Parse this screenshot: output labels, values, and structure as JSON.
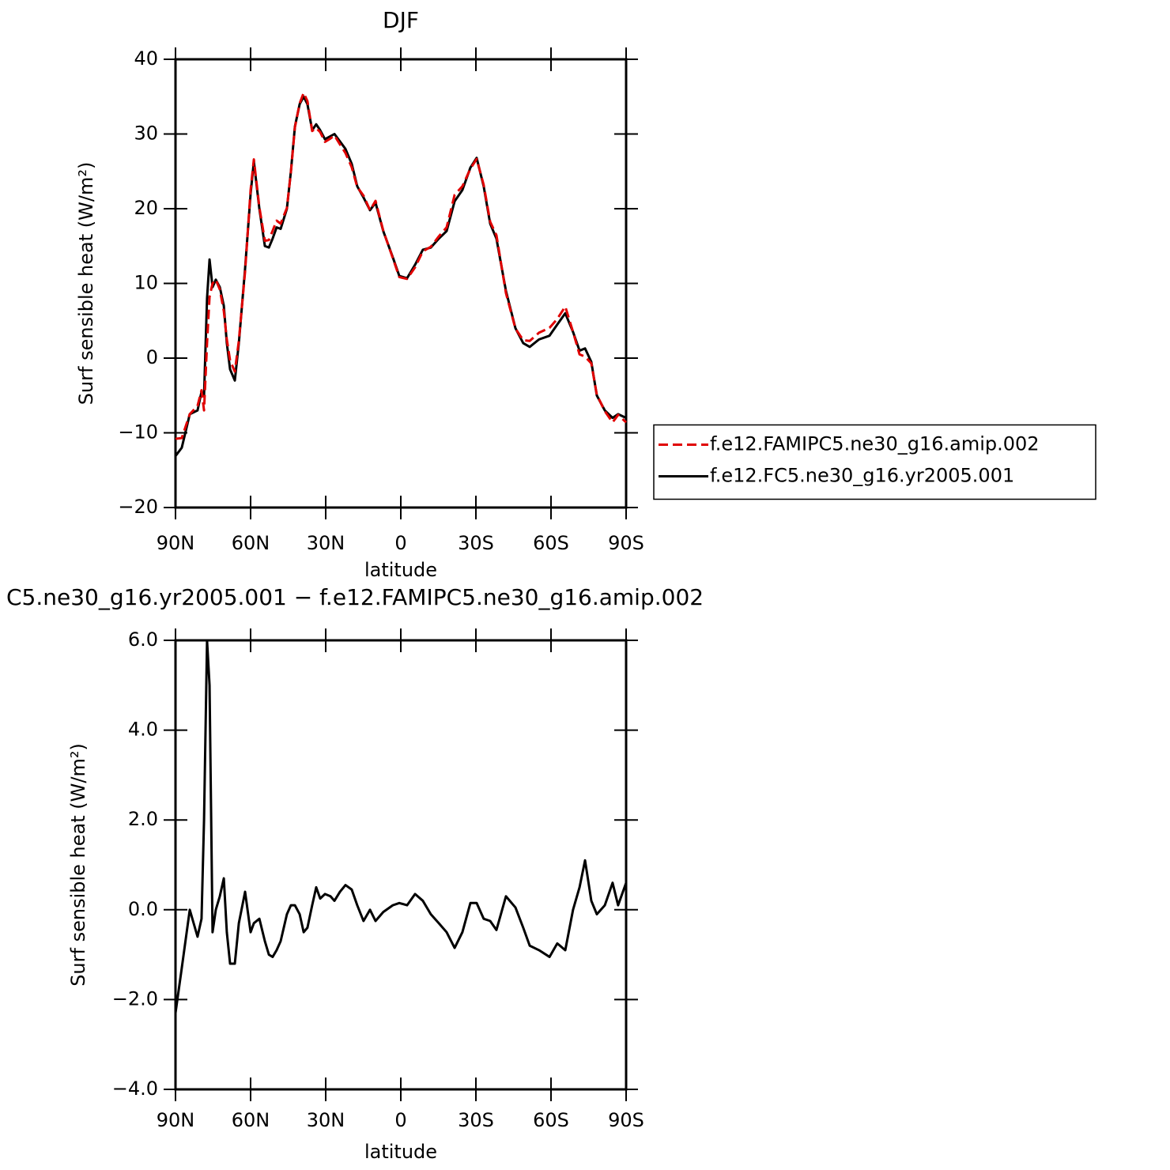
{
  "chart_data": [
    {
      "type": "line",
      "title": "DJF",
      "x_label": "latitude",
      "y_label": "Surf sensible heat (W/m²)",
      "xlim": [
        90,
        -90
      ],
      "xticks": [
        {
          "value": 90,
          "label": "90N"
        },
        {
          "value": 60,
          "label": "60N"
        },
        {
          "value": 30,
          "label": "30N"
        },
        0,
        {
          "value": -30,
          "label": "30S"
        },
        {
          "value": -60,
          "label": "60S"
        },
        {
          "value": -90,
          "label": "90S"
        }
      ],
      "ylim": [
        -20,
        40
      ],
      "yticks": [
        {
          "value": -20,
          "label": "−20"
        },
        {
          "value": -10,
          "label": "−10"
        },
        0,
        10,
        20,
        30,
        40
      ],
      "legend": "right",
      "x": [
        90,
        87.5,
        84.3,
        81.2,
        79.6,
        78.6,
        77.4,
        76.4,
        75.2,
        73.9,
        72.3,
        70.7,
        69.5,
        68.2,
        66.3,
        64.7,
        62.2,
        60,
        58.7,
        56.5,
        54.3,
        52.7,
        51.2,
        49.6,
        48,
        45.5,
        43.9,
        42.3,
        40.4,
        38.8,
        37.3,
        35.4,
        33.8,
        32.2,
        30.3,
        28.1,
        26.5,
        24.3,
        22.1,
        19.6,
        17.4,
        14.9,
        12.3,
        10.1,
        7,
        3.2,
        0.6,
        -2.5,
        -5.7,
        -8.8,
        -12,
        -15.2,
        -18.3,
        -21.5,
        -24.6,
        -27.8,
        -30.3,
        -33.1,
        -35.7,
        -38.2,
        -42,
        -45.8,
        -48.9,
        -51.5,
        -55.2,
        -59.4,
        -62.5,
        -65.7,
        -68.8,
        -71.4,
        -73.6,
        -76.1,
        -78.3,
        -81.5,
        -84.6,
        -86.8,
        -90
      ],
      "series": [
        {
          "name": "f.e12.FAMIPC5.ne30_g16.amip.002",
          "color": "#e00000",
          "linestyle": "dashed",
          "values": [
            -10.8,
            -10.7,
            -7.5,
            -6.4,
            -4.3,
            -7,
            2,
            8.2,
            10,
            10.5,
            9.2,
            6.3,
            2.5,
            -0.3,
            -1.8,
            2.3,
            11.6,
            22.5,
            26.6,
            20.2,
            15.7,
            15.8,
            17.05,
            18.4,
            18,
            20.1,
            24.9,
            30.9,
            34.1,
            35.5,
            34.4,
            30.4,
            30.8,
            30.25,
            28.95,
            29.4,
            29.8,
            28.6,
            27.45,
            25.55,
            22.9,
            21.75,
            19.8,
            21.05,
            17.05,
            13.4,
            10.85,
            10.6,
            12.15,
            14.3,
            14.9,
            16.3,
            17.5,
            21.85,
            23,
            25.35,
            26.65,
            23.2,
            18.25,
            16.45,
            8.7,
            3.95,
            2.4,
            2.3,
            3.4,
            4.05,
            5.25,
            6.9,
            3.5,
            0.5,
            0.2,
            -0.7,
            -4.9,
            -7.1,
            -8.6,
            -7.6,
            -8.6
          ]
        },
        {
          "name": "f.e12.FC5.ne30_g16.yr2005.001",
          "color": "#000000",
          "linestyle": "solid",
          "values": [
            -13.1,
            -12,
            -7.5,
            -7,
            -4.5,
            -5,
            8,
            13.2,
            9.5,
            10.5,
            9.5,
            7,
            2,
            -1.5,
            -3,
            2,
            12,
            22,
            26.3,
            20,
            15,
            14.8,
            16,
            17.5,
            17.3,
            20,
            25,
            31,
            34,
            35,
            34,
            30.5,
            31.3,
            30.5,
            29.3,
            29.7,
            30,
            29,
            28,
            26,
            23,
            21.5,
            19.8,
            20.8,
            17,
            13.5,
            11,
            10.7,
            12.5,
            14.5,
            14.8,
            16,
            17,
            21,
            22.5,
            25.5,
            26.8,
            23,
            18,
            16,
            9,
            4,
            2,
            1.5,
            2.5,
            3,
            4.5,
            6,
            3.5,
            1,
            1.3,
            -0.5,
            -5,
            -7,
            -8,
            -7.5,
            -8
          ]
        }
      ]
    },
    {
      "type": "line",
      "title": "C5.ne30_g16.yr2005.001 − f.e12.FAMIPC5.ne30_g16.amip.002",
      "x_label": "latitude",
      "y_label": "Surf sensible heat (W/m²)",
      "xlim": [
        90,
        -90
      ],
      "xticks": [
        {
          "value": 90,
          "label": "90N"
        },
        {
          "value": 60,
          "label": "60N"
        },
        {
          "value": 30,
          "label": "30N"
        },
        0,
        {
          "value": -30,
          "label": "30S"
        },
        {
          "value": -60,
          "label": "60S"
        },
        {
          "value": -90,
          "label": "90S"
        }
      ],
      "ylim": [
        -4,
        6
      ],
      "yticks": [
        {
          "value": -4,
          "label": "−4.0"
        },
        {
          "value": -2,
          "label": "−2.0"
        },
        {
          "value": 0,
          "label": "0.0"
        },
        {
          "value": 2,
          "label": "2.0"
        },
        {
          "value": 4,
          "label": "4.0"
        },
        {
          "value": 6,
          "label": "6.0"
        }
      ],
      "x": [
        90,
        87.5,
        84.3,
        81.2,
        79.6,
        78.6,
        77.4,
        76.4,
        75.2,
        73.9,
        72.3,
        70.7,
        69.5,
        68.2,
        66.3,
        64.7,
        62.2,
        60,
        58.7,
        56.5,
        54.3,
        52.7,
        51.2,
        49.6,
        48,
        45.5,
        43.9,
        42.3,
        40.4,
        38.8,
        37.3,
        35.4,
        33.8,
        32.2,
        30.3,
        28.1,
        26.5,
        24.3,
        22.1,
        19.6,
        17.4,
        14.9,
        12.3,
        10.1,
        7,
        3.2,
        0.6,
        -2.5,
        -5.7,
        -8.8,
        -12,
        -15.2,
        -18.3,
        -21.5,
        -24.6,
        -27.8,
        -30.3,
        -33.1,
        -35.7,
        -38.2,
        -42,
        -45.8,
        -48.9,
        -51.5,
        -55.2,
        -59.4,
        -62.5,
        -65.7,
        -68.8,
        -71.4,
        -73.6,
        -76.1,
        -78.3,
        -81.5,
        -84.6,
        -86.8,
        -90
      ],
      "color": "#000000",
      "values": [
        -2.3,
        -1.3,
        0,
        -0.6,
        -0.2,
        2,
        6,
        5,
        -0.5,
        0,
        0.3,
        0.7,
        -0.5,
        -1.2,
        -1.2,
        -0.3,
        0.4,
        -0.5,
        -0.3,
        -0.2,
        -0.7,
        -1,
        -1.05,
        -0.9,
        -0.7,
        -0.1,
        0.1,
        0.1,
        -0.1,
        -0.5,
        -0.4,
        0.1,
        0.5,
        0.25,
        0.35,
        0.3,
        0.2,
        0.4,
        0.55,
        0.45,
        0.1,
        -0.25,
        0,
        -0.25,
        -0.05,
        0.1,
        0.15,
        0.1,
        0.35,
        0.2,
        -0.1,
        -0.3,
        -0.5,
        -0.85,
        -0.5,
        0.15,
        0.15,
        -0.2,
        -0.25,
        -0.45,
        0.3,
        0.05,
        -0.4,
        -0.8,
        -0.9,
        -1.05,
        -0.75,
        -0.9,
        0,
        0.5,
        1.1,
        0.2,
        -0.1,
        0.1,
        0.6,
        0.1,
        0.6
      ]
    }
  ]
}
